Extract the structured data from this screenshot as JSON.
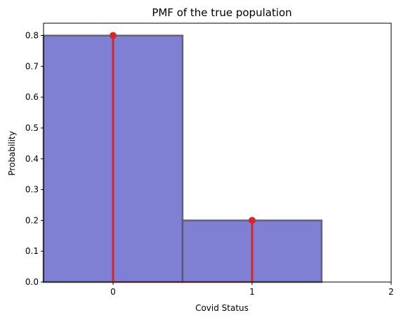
{
  "chart_data": {
    "type": "bar",
    "title": "PMF of the true population",
    "xlabel": "Covid Status",
    "ylabel": "Probability",
    "categories": [
      0,
      1
    ],
    "values": [
      0.8,
      0.2
    ],
    "xlim": [
      -0.5,
      2
    ],
    "ylim": [
      0,
      0.84
    ],
    "xticks": [
      0,
      1,
      2
    ],
    "yticks": [
      0.0,
      0.1,
      0.2,
      0.3,
      0.4,
      0.5,
      0.6,
      0.7,
      0.8
    ],
    "ytick_labels": [
      "0.0",
      "0.1",
      "0.2",
      "0.3",
      "0.4",
      "0.5",
      "0.6",
      "0.7",
      "0.8"
    ],
    "xtick_labels": [
      "0",
      "1",
      "2"
    ],
    "bar_width": 1,
    "bar_color": "#7f7fd4",
    "bar_edge_color": "#555566",
    "stem_color": "#d62728",
    "grid": false,
    "legend": "none"
  }
}
